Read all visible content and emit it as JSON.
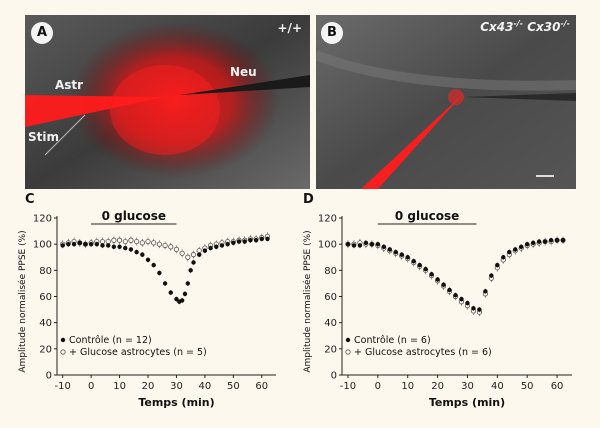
{
  "panels": {
    "a": {
      "letter": "A",
      "genotype": "+/+",
      "labels": {
        "astr": "Astr",
        "neu": "Neu",
        "stim": "Stim"
      }
    },
    "b": {
      "letter": "B",
      "genotype": "Cx43",
      "genotype_sup1": "-/-",
      "genotype_b": "Cx30",
      "genotype_sup2": "-/-"
    },
    "c": {
      "letter": "C"
    },
    "d": {
      "letter": "D"
    }
  },
  "chart_data": [
    {
      "type": "scatter",
      "panel": "C",
      "title": "",
      "annotation": "0 glucose",
      "annotation_range": [
        0,
        30
      ],
      "xlabel": "Temps (min)",
      "ylabel": "Amplitude normalisée PPSE (%)",
      "xlim": [
        -12,
        65
      ],
      "ylim": [
        0,
        120
      ],
      "xticks": [
        -10,
        0,
        10,
        20,
        30,
        40,
        50,
        60
      ],
      "yticks": [
        0,
        20,
        40,
        60,
        80,
        100,
        120
      ],
      "legend_position": "bottom-left",
      "series": [
        {
          "name": "Contrôle (n = 12)",
          "marker": "filled",
          "x": [
            -10,
            -8,
            -6,
            -4,
            -2,
            0,
            2,
            4,
            6,
            8,
            10,
            12,
            14,
            16,
            18,
            20,
            22,
            24,
            26,
            28,
            30,
            31,
            32,
            33,
            34,
            35,
            36,
            38,
            40,
            42,
            44,
            46,
            48,
            50,
            52,
            54,
            56,
            58,
            60,
            62
          ],
          "y": [
            99,
            100,
            100,
            101,
            100,
            100,
            100,
            99,
            99,
            98,
            98,
            97,
            96,
            94,
            92,
            88,
            84,
            78,
            70,
            63,
            58,
            56,
            57,
            62,
            70,
            80,
            86,
            92,
            95,
            97,
            98,
            99,
            100,
            101,
            102,
            102,
            103,
            103,
            104,
            104
          ]
        },
        {
          "name": "+ Glucose astrocytes (n = 5)",
          "marker": "open",
          "x": [
            -10,
            -8,
            -6,
            -4,
            -2,
            0,
            2,
            4,
            6,
            8,
            10,
            12,
            14,
            16,
            18,
            20,
            22,
            24,
            26,
            28,
            30,
            32,
            34,
            36,
            38,
            40,
            42,
            44,
            46,
            48,
            50,
            52,
            54,
            56,
            58,
            60,
            62
          ],
          "y": [
            100,
            101,
            102,
            101,
            100,
            101,
            102,
            102,
            102,
            103,
            103,
            102,
            103,
            102,
            101,
            102,
            101,
            100,
            99,
            98,
            96,
            93,
            90,
            92,
            95,
            97,
            99,
            100,
            101,
            102,
            102,
            103,
            103,
            104,
            104,
            105,
            106
          ]
        }
      ]
    },
    {
      "type": "scatter",
      "panel": "D",
      "title": "",
      "annotation": "0 glucose",
      "annotation_range": [
        0,
        33
      ],
      "xlabel": "Temps (min)",
      "ylabel": "Amplitude normalisée PPSE (%)",
      "xlim": [
        -12,
        65
      ],
      "ylim": [
        0,
        120
      ],
      "xticks": [
        -10,
        0,
        10,
        20,
        30,
        40,
        50,
        60
      ],
      "yticks": [
        0,
        20,
        40,
        60,
        80,
        100,
        120
      ],
      "legend_position": "bottom-left",
      "series": [
        {
          "name": "Contrôle (n = 6)",
          "marker": "filled",
          "x": [
            -10,
            -8,
            -6,
            -4,
            -2,
            0,
            2,
            4,
            6,
            8,
            10,
            12,
            14,
            16,
            18,
            20,
            22,
            24,
            26,
            28,
            30,
            32,
            34,
            36,
            38,
            40,
            42,
            44,
            46,
            48,
            50,
            52,
            54,
            56,
            58,
            60,
            62
          ],
          "y": [
            100,
            99,
            99,
            101,
            100,
            100,
            98,
            96,
            94,
            92,
            90,
            87,
            84,
            81,
            77,
            73,
            69,
            65,
            61,
            58,
            55,
            51,
            50,
            64,
            76,
            84,
            90,
            94,
            96,
            98,
            100,
            101,
            102,
            102,
            103,
            103,
            103
          ]
        },
        {
          "name": "+ Glucose astrocytes (n = 6)",
          "marker": "open",
          "x": [
            -10,
            -8,
            -6,
            -4,
            -2,
            0,
            2,
            4,
            6,
            8,
            10,
            12,
            14,
            16,
            18,
            20,
            22,
            24,
            26,
            28,
            30,
            32,
            34,
            36,
            38,
            40,
            42,
            44,
            46,
            48,
            50,
            52,
            54,
            56,
            58,
            60,
            62
          ],
          "y": [
            100,
            100,
            101,
            100,
            100,
            99,
            97,
            95,
            93,
            91,
            89,
            86,
            83,
            80,
            76,
            72,
            68,
            64,
            60,
            56,
            53,
            49,
            48,
            62,
            74,
            82,
            88,
            92,
            95,
            97,
            99,
            100,
            101,
            102,
            102,
            103,
            103
          ]
        }
      ]
    }
  ]
}
